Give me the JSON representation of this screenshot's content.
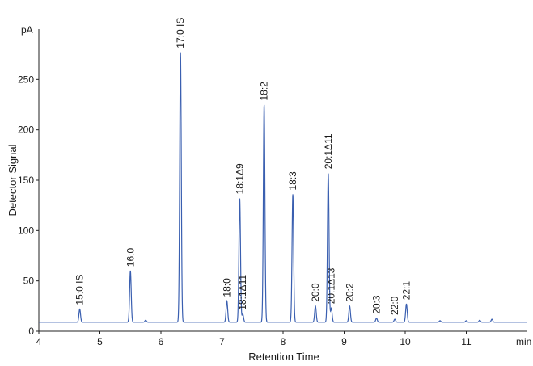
{
  "chart_data": {
    "type": "line",
    "title": "",
    "xlabel": "Retention Time",
    "ylabel": "Detector Signal",
    "x_unit": "min",
    "y_unit": "pA",
    "xlim": [
      4,
      12
    ],
    "ylim": [
      0,
      300
    ],
    "x_ticks": [
      4,
      5,
      6,
      7,
      8,
      9,
      10,
      11
    ],
    "y_ticks": [
      0,
      50,
      100,
      150,
      200,
      250
    ],
    "grid": false,
    "line_color": "#3a5fb0",
    "baseline": 9,
    "peaks": [
      {
        "label": "15:0 IS",
        "rt": 4.67,
        "height": 22
      },
      {
        "label": "16:0",
        "rt": 5.5,
        "height": 60
      },
      {
        "label": "",
        "rt": 5.75,
        "height": 11
      },
      {
        "label": "17:0 IS",
        "rt": 6.32,
        "height": 277
      },
      {
        "label": "18:0",
        "rt": 7.08,
        "height": 30
      },
      {
        "label": "18:1Δ9",
        "rt": 7.29,
        "height": 132
      },
      {
        "label": "18:1Δ11",
        "rt": 7.34,
        "height": 17
      },
      {
        "label": "18:2",
        "rt": 7.69,
        "height": 225
      },
      {
        "label": "18:3",
        "rt": 8.16,
        "height": 136
      },
      {
        "label": "20:0",
        "rt": 8.53,
        "height": 25
      },
      {
        "label": "20:1Δ11",
        "rt": 8.74,
        "height": 157
      },
      {
        "label": "20:1Δ13",
        "rt": 8.79,
        "height": 23
      },
      {
        "label": "20:2",
        "rt": 9.09,
        "height": 25
      },
      {
        "label": "20:3",
        "rt": 9.53,
        "height": 13
      },
      {
        "label": "22:0",
        "rt": 9.83,
        "height": 12
      },
      {
        "label": "22:1",
        "rt": 10.02,
        "height": 27
      },
      {
        "label": "",
        "rt": 10.57,
        "height": 10.5
      },
      {
        "label": "",
        "rt": 11.0,
        "height": 10.5
      },
      {
        "label": "",
        "rt": 11.22,
        "height": 11
      },
      {
        "label": "",
        "rt": 11.42,
        "height": 12
      }
    ]
  }
}
